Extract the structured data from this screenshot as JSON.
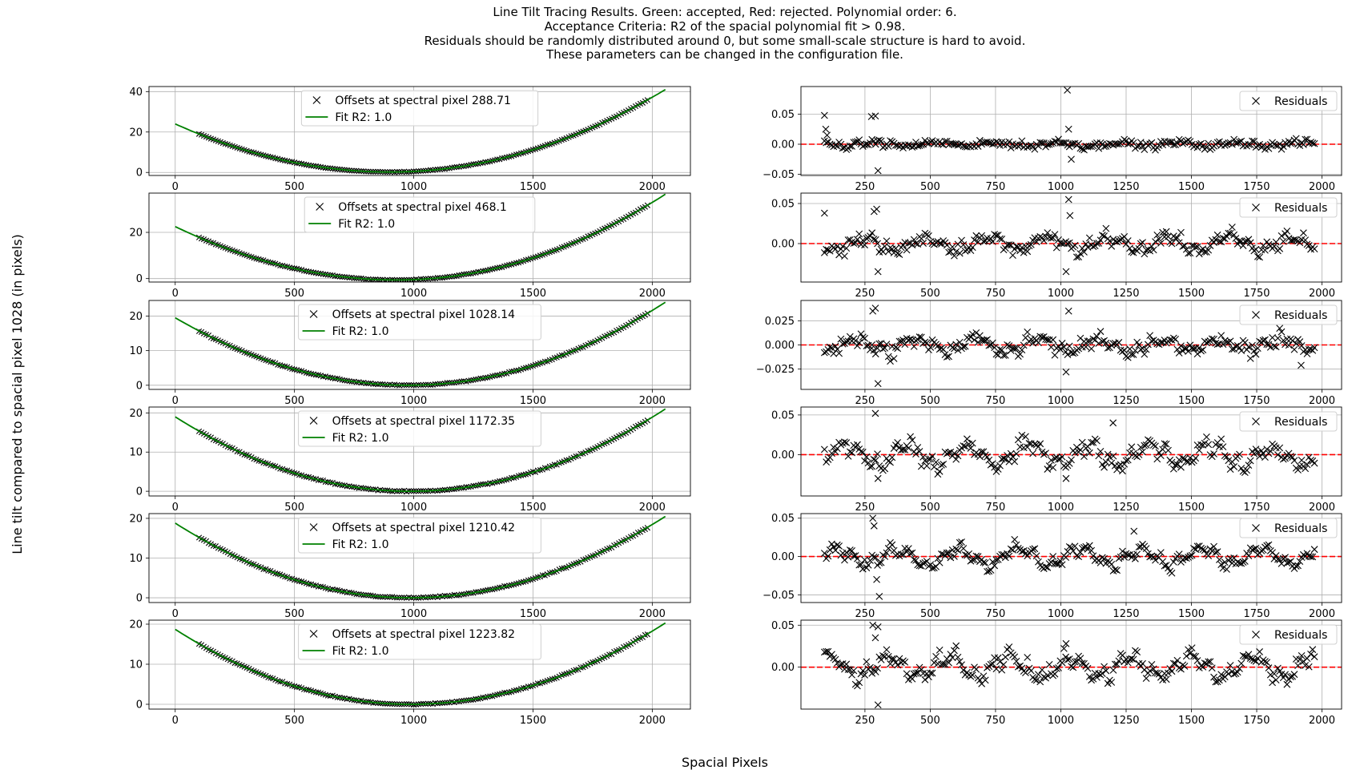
{
  "suptitle": [
    "Line Tilt Tracing Results. Green: accepted, Red: rejected. Polynomial order: 6.",
    "Acceptance Criteria: R2 of the spacial polynomial fit > 0.98.",
    "Residuals should be randomly distributed around 0, but some small-scale structure is hard to avoid.",
    "These parameters can be changed in the configuration file."
  ],
  "supxlabel": "Spacial Pixels",
  "supylabel": "Line tilt compared to spacial pixel 1028 (in pixels)",
  "colors": {
    "points": "#000000",
    "fit": "#008000",
    "zero_line": "#ff0000",
    "grid": "#b0b0b0"
  },
  "chart_data": [
    {
      "type": "scatter",
      "panel": "fit",
      "row": 0,
      "legend": [
        "Offsets at spectral pixel 288.71",
        "Fit R2: 1.0"
      ],
      "legend_loc": "upper center",
      "xlim": [
        -110,
        2160
      ],
      "ylim": [
        -1.5,
        42.5
      ],
      "xticks": [
        0,
        500,
        1000,
        1500,
        2000
      ],
      "yticks": [
        0,
        20,
        40
      ],
      "points_x_range": [
        100,
        1980
      ],
      "fit_x_range": [
        0,
        2055
      ],
      "grid": true,
      "curve": {
        "vertex_x": 900,
        "vertex_y": 0.2,
        "left_x": 0,
        "left_y": 24.0,
        "right_x": 2055,
        "right_y": 41.0
      }
    },
    {
      "type": "scatter",
      "panel": "fit",
      "row": 1,
      "legend": [
        "Offsets at spectral pixel 468.1",
        "Fit R2: 1.0"
      ],
      "legend_loc": "upper center",
      "xlim": [
        -110,
        2160
      ],
      "ylim": [
        -1.5,
        37
      ],
      "xticks": [
        0,
        500,
        1000,
        1500,
        2000
      ],
      "yticks": [
        0,
        20
      ],
      "points_x_range": [
        100,
        1980
      ],
      "fit_x_range": [
        0,
        2055
      ],
      "grid": true,
      "curve": {
        "vertex_x": 930,
        "vertex_y": -0.6,
        "left_x": 0,
        "left_y": 22.5,
        "right_x": 2055,
        "right_y": 36.5
      }
    },
    {
      "type": "scatter",
      "panel": "fit",
      "row": 2,
      "legend": [
        "Offsets at spectral pixel 1028.14",
        "Fit R2: 1.0"
      ],
      "legend_loc": "upper center",
      "xlim": [
        -110,
        2160
      ],
      "ylim": [
        -1.2,
        24.5
      ],
      "xticks": [
        0,
        500,
        1000,
        1500,
        2000
      ],
      "yticks": [
        0,
        10,
        20
      ],
      "points_x_range": [
        100,
        1980
      ],
      "fit_x_range": [
        0,
        2055
      ],
      "grid": true,
      "curve": {
        "vertex_x": 975,
        "vertex_y": 0.0,
        "left_x": 0,
        "left_y": 19.5,
        "right_x": 2055,
        "right_y": 24.0
      }
    },
    {
      "type": "scatter",
      "panel": "fit",
      "row": 3,
      "legend": [
        "Offsets at spectral pixel 1172.35",
        "Fit R2: 1.0"
      ],
      "legend_loc": "upper center",
      "xlim": [
        -110,
        2160
      ],
      "ylim": [
        -1.2,
        21.5
      ],
      "xticks": [
        0,
        500,
        1000,
        1500,
        2000
      ],
      "yticks": [
        0,
        10,
        20
      ],
      "points_x_range": [
        100,
        1980
      ],
      "fit_x_range": [
        0,
        2055
      ],
      "grid": true,
      "curve": {
        "vertex_x": 985,
        "vertex_y": 0.0,
        "left_x": 0,
        "left_y": 19.0,
        "right_x": 2055,
        "right_y": 21.0
      }
    },
    {
      "type": "scatter",
      "panel": "fit",
      "row": 4,
      "legend": [
        "Offsets at spectral pixel 1210.42",
        "Fit R2: 1.0"
      ],
      "legend_loc": "upper center",
      "xlim": [
        -110,
        2160
      ],
      "ylim": [
        -1.2,
        21.2
      ],
      "xticks": [
        0,
        500,
        1000,
        1500,
        2000
      ],
      "yticks": [
        0,
        10,
        20
      ],
      "points_x_range": [
        100,
        1980
      ],
      "fit_x_range": [
        0,
        2055
      ],
      "grid": true,
      "curve": {
        "vertex_x": 985,
        "vertex_y": 0.0,
        "left_x": 0,
        "left_y": 18.8,
        "right_x": 2055,
        "right_y": 20.5
      }
    },
    {
      "type": "scatter",
      "panel": "fit",
      "row": 5,
      "legend": [
        "Offsets at spectral pixel 1223.82",
        "Fit R2: 1.0"
      ],
      "legend_loc": "upper center",
      "xlim": [
        -110,
        2160
      ],
      "ylim": [
        -1.2,
        21.0
      ],
      "xticks": [
        0,
        500,
        1000,
        1500,
        2000
      ],
      "yticks": [
        0,
        10,
        20
      ],
      "points_x_range": [
        100,
        1980
      ],
      "fit_x_range": [
        0,
        2055
      ],
      "grid": true,
      "curve": {
        "vertex_x": 985,
        "vertex_y": 0.0,
        "left_x": 0,
        "left_y": 18.7,
        "right_x": 2055,
        "right_y": 20.3
      }
    },
    {
      "type": "scatter",
      "panel": "residuals",
      "row": 0,
      "legend": [
        "Residuals"
      ],
      "legend_loc": "upper right",
      "xlim": [
        5,
        2075
      ],
      "ylim": [
        -0.052,
        0.096
      ],
      "xticks": [
        250,
        500,
        750,
        1000,
        1250,
        1500,
        1750,
        2000
      ],
      "yticks": [
        0.05,
        0.0,
        -0.05
      ],
      "ytick_labels": [
        "0.05",
        "0.00",
        "−0.05"
      ],
      "zero_line": 0,
      "grid": true,
      "points_x_range": [
        95,
        1975
      ],
      "spread": 0.008,
      "wave_amp": 0.003,
      "outliers": [
        [
          95,
          0.048
        ],
        [
          100,
          0.025
        ],
        [
          105,
          0.015
        ],
        [
          275,
          0.046
        ],
        [
          290,
          0.047
        ],
        [
          300,
          -0.044
        ],
        [
          1025,
          0.09
        ],
        [
          1030,
          0.025
        ],
        [
          1040,
          -0.025
        ]
      ]
    },
    {
      "type": "scatter",
      "panel": "residuals",
      "row": 1,
      "legend": [
        "Residuals"
      ],
      "legend_loc": "upper right",
      "xlim": [
        5,
        2075
      ],
      "ylim": [
        -0.048,
        0.063
      ],
      "xticks": [
        250,
        500,
        750,
        1000,
        1250,
        1500,
        1750,
        2000
      ],
      "yticks": [
        0.05,
        0.0
      ],
      "ytick_labels": [
        "0.05",
        "0.00"
      ],
      "zero_line": 0,
      "grid": true,
      "points_x_range": [
        95,
        1975
      ],
      "spread": 0.012,
      "wave_amp": 0.008,
      "outliers": [
        [
          95,
          0.038
        ],
        [
          285,
          0.04
        ],
        [
          295,
          0.043
        ],
        [
          300,
          -0.035
        ],
        [
          1020,
          -0.035
        ],
        [
          1030,
          0.055
        ],
        [
          1035,
          0.035
        ]
      ]
    },
    {
      "type": "scatter",
      "panel": "residuals",
      "row": 2,
      "legend": [
        "Residuals"
      ],
      "legend_loc": "upper right",
      "xlim": [
        5,
        2075
      ],
      "ylim": [
        -0.046,
        0.046
      ],
      "xticks": [
        250,
        500,
        750,
        1000,
        1250,
        1500,
        1750,
        2000
      ],
      "yticks": [
        0.025,
        0.0,
        -0.025
      ],
      "ytick_labels": [
        "0.025",
        "0.000",
        "−0.025"
      ],
      "zero_line": 0,
      "grid": true,
      "points_x_range": [
        95,
        1975
      ],
      "spread": 0.01,
      "wave_amp": 0.006,
      "outliers": [
        [
          280,
          0.035
        ],
        [
          290,
          0.038
        ],
        [
          300,
          -0.04
        ],
        [
          1020,
          -0.028
        ],
        [
          1030,
          0.035
        ],
        [
          1920,
          -0.021
        ]
      ]
    },
    {
      "type": "scatter",
      "panel": "residuals",
      "row": 3,
      "legend": [
        "Residuals"
      ],
      "legend_loc": "upper right",
      "xlim": [
        5,
        2075
      ],
      "ylim": [
        -0.052,
        0.06
      ],
      "xticks": [
        250,
        500,
        750,
        1000,
        1250,
        1500,
        1750,
        2000
      ],
      "yticks": [
        0.05,
        0.0
      ],
      "ytick_labels": [
        "0.05",
        "0.00"
      ],
      "zero_line": 0,
      "grid": true,
      "points_x_range": [
        95,
        1975
      ],
      "spread": 0.014,
      "wave_amp": 0.012,
      "outliers": [
        [
          290,
          0.052
        ],
        [
          300,
          -0.03
        ],
        [
          1020,
          -0.03
        ],
        [
          1200,
          0.04
        ]
      ]
    },
    {
      "type": "scatter",
      "panel": "residuals",
      "row": 4,
      "legend": [
        "Residuals"
      ],
      "legend_loc": "upper right",
      "xlim": [
        5,
        2075
      ],
      "ylim": [
        -0.06,
        0.056
      ],
      "xticks": [
        250,
        500,
        750,
        1000,
        1250,
        1500,
        1750,
        2000
      ],
      "yticks": [
        0.05,
        0.0,
        -0.05
      ],
      "ytick_labels": [
        "0.05",
        "0.00",
        "−0.05"
      ],
      "zero_line": 0,
      "grid": true,
      "points_x_range": [
        95,
        1975
      ],
      "spread": 0.01,
      "wave_amp": 0.01,
      "outliers": [
        [
          280,
          0.05
        ],
        [
          285,
          0.04
        ],
        [
          295,
          -0.03
        ],
        [
          305,
          -0.052
        ],
        [
          1280,
          0.033
        ]
      ]
    },
    {
      "type": "scatter",
      "panel": "residuals",
      "row": 5,
      "legend": [
        "Residuals"
      ],
      "legend_loc": "upper right",
      "xlim": [
        5,
        2075
      ],
      "ylim": [
        -0.05,
        0.056
      ],
      "xticks": [
        250,
        500,
        750,
        1000,
        1250,
        1500,
        1750,
        2000
      ],
      "yticks": [
        0.05,
        0.0
      ],
      "ytick_labels": [
        "0.05",
        "0.00"
      ],
      "zero_line": 0,
      "grid": true,
      "points_x_range": [
        95,
        1975
      ],
      "spread": 0.012,
      "wave_amp": 0.012,
      "outliers": [
        [
          280,
          0.05
        ],
        [
          290,
          0.035
        ],
        [
          300,
          0.048
        ],
        [
          300,
          -0.045
        ],
        [
          1020,
          0.028
        ]
      ]
    }
  ]
}
